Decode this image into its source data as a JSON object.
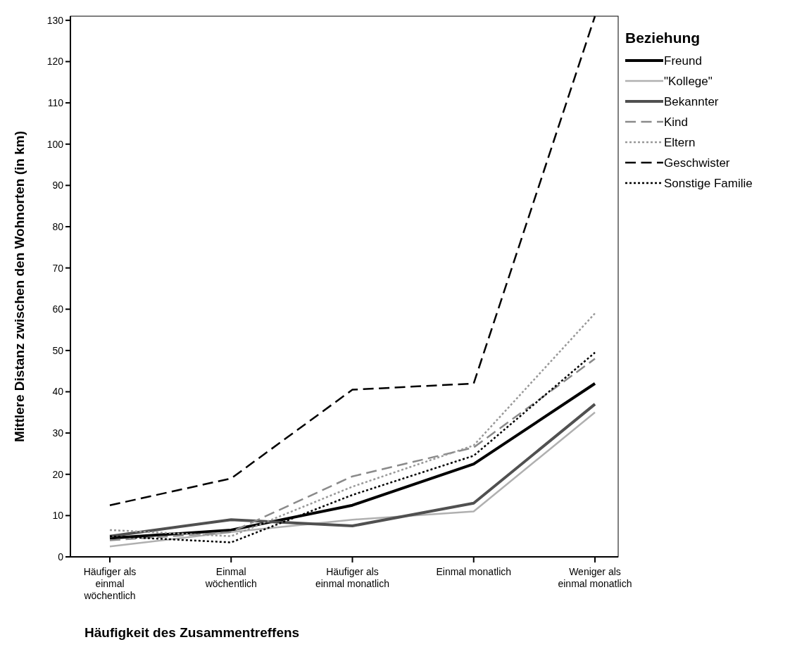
{
  "chart_data": {
    "type": "line",
    "xlabel": "Häufigkeit des Zusammentreffens",
    "ylabel": "Mittlere Distanz zwischen den Wohnorten (in km)",
    "legend_title": "Beziehung",
    "legend": "top right",
    "grid": false,
    "categories": [
      "Häufiger als einmal wöchentlich",
      "Einmal wöchentlich",
      "Häufiger als einmal monatlich",
      "Einmal monatlich",
      "Weniger als einmal monatlich"
    ],
    "ylim": [
      0,
      131
    ],
    "yticks": [
      0,
      10,
      20,
      30,
      40,
      50,
      60,
      70,
      80,
      90,
      100,
      110,
      120,
      130
    ],
    "series": [
      {
        "name": "Freund",
        "color": "#000000",
        "line_style": "solid",
        "values": [
          4.5,
          6.5,
          12.5,
          22.5,
          42
        ]
      },
      {
        "name": "\"Kollege\"",
        "color": "#b0b0b0",
        "line_style": "solid",
        "values": [
          2.5,
          6,
          9,
          11,
          35
        ]
      },
      {
        "name": "Bekannter",
        "color": "#505050",
        "line_style": "solid",
        "values": [
          5,
          9,
          7.5,
          13,
          37
        ]
      },
      {
        "name": "Kind",
        "color": "#8a8a8a",
        "line_style": "dashed",
        "values": [
          4,
          6,
          19.5,
          26.5,
          48
        ]
      },
      {
        "name": "Eltern",
        "color": "#999999",
        "line_style": "dotted",
        "values": [
          6.5,
          5,
          17,
          27,
          59
        ]
      },
      {
        "name": "Geschwister",
        "color": "#000000",
        "line_style": "dashed",
        "values": [
          12.5,
          19,
          40.5,
          42,
          131
        ]
      },
      {
        "name": "Sonstige Familie",
        "color": "#000000",
        "line_style": "dotted",
        "values": [
          5,
          3.5,
          15,
          24.5,
          49.5
        ]
      }
    ]
  }
}
